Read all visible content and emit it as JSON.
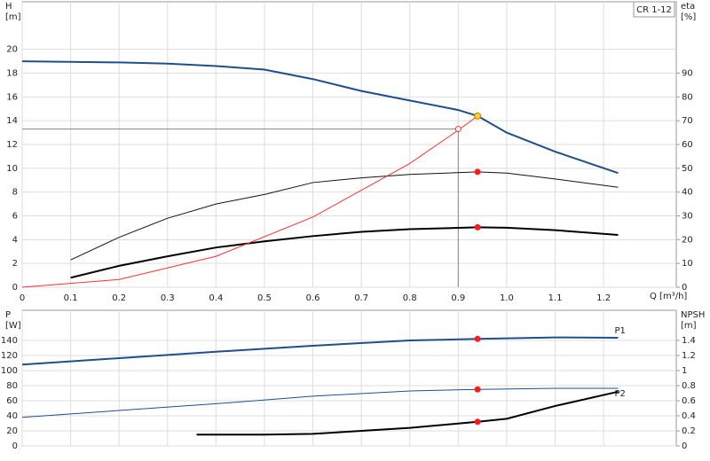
{
  "chart_data": [
    {
      "type": "line",
      "title": "CR 1-12",
      "ylabel": [
        "H",
        "[m]"
      ],
      "y2label": [
        "eta",
        "[%]"
      ],
      "xlabel": "Q [m³/h]",
      "xlim": [
        0,
        1.35
      ],
      "ylim": [
        0,
        24
      ],
      "y2lim": [
        0,
        120
      ],
      "grid": true,
      "xticks": [
        0,
        0.1,
        0.2,
        0.3,
        0.4,
        0.5,
        0.6,
        0.7,
        0.8,
        0.9,
        {
          "value": 1,
          "label": "1.0"
        },
        1.1,
        1.2
      ],
      "yticks": [
        0,
        2,
        4,
        6,
        8,
        10,
        12,
        14,
        16,
        18,
        20
      ],
      "y2ticks": [
        0,
        10,
        20,
        30,
        40,
        50,
        60,
        70,
        80,
        90
      ],
      "series": [
        {
          "color": "#1f4e8c",
          "line_width": 2,
          "x": [
            0,
            0.2,
            0.3,
            0.4,
            0.5,
            0.6,
            0.7,
            0.8,
            0.9,
            0.94,
            1.0,
            1.1,
            1.23
          ],
          "values": [
            19.0,
            18.9,
            18.8,
            18.6,
            18.3,
            17.5,
            16.5,
            15.7,
            14.9,
            14.4,
            13.0,
            11.4,
            9.6
          ]
        },
        {
          "color": "#111111",
          "line_width": 1,
          "axis": "y2",
          "x": [
            0.1,
            0.2,
            0.3,
            0.4,
            0.5,
            0.6,
            0.7,
            0.8,
            0.94,
            1.0,
            1.1,
            1.23
          ],
          "values": [
            11.5,
            21,
            29,
            35,
            39,
            44,
            46,
            47.4,
            48.5,
            48,
            45.5,
            42
          ]
        },
        {
          "color": "#000000",
          "line_width": 2,
          "axis": "y2",
          "x": [
            0.1,
            0.2,
            0.3,
            0.4,
            0.5,
            0.6,
            0.7,
            0.8,
            0.94,
            1.0,
            1.1,
            1.23
          ],
          "values": [
            4,
            9,
            13,
            16.7,
            19.3,
            21.5,
            23.3,
            24.4,
            25.2,
            25,
            24,
            22
          ]
        },
        {
          "color": "#ff3030",
          "line_width": 1,
          "x": [
            0,
            0.2,
            0.4,
            0.6,
            0.8,
            0.9,
            0.94
          ],
          "values": [
            0,
            0.65,
            2.6,
            5.9,
            10.4,
            13.2,
            14.4
          ]
        }
      ],
      "reference": {
        "x": 0.9,
        "y": 13.3,
        "color": "#888888"
      },
      "points": [
        {
          "x": 0.9,
          "y": 13.3,
          "color": "#ff3030",
          "hollow": true
        },
        {
          "x": 0.94,
          "y": 14.4,
          "color": "#ffd21f"
        },
        {
          "x": 0.94,
          "y": 48.5,
          "axis": "y2",
          "color": "#ff1a1a"
        },
        {
          "x": 0.94,
          "y": 25.2,
          "axis": "y2",
          "color": "#ff1a1a"
        }
      ]
    },
    {
      "type": "line",
      "ylabel": [
        "P",
        "[W]"
      ],
      "y2label": [
        "NPSH",
        "[m]"
      ],
      "xlim": [
        0,
        1.35
      ],
      "ylim": [
        0,
        180
      ],
      "y2lim": [
        0,
        1.8
      ],
      "grid": true,
      "yticks": [
        0,
        20,
        40,
        60,
        80,
        100,
        120,
        140
      ],
      "y2ticks": [
        0,
        0.2,
        0.4,
        0.6,
        0.8,
        1,
        1.2,
        1.4
      ],
      "series": [
        {
          "name": "P1",
          "color": "#1f4e8c",
          "line_width": 2,
          "x": [
            0,
            0.4,
            0.6,
            0.8,
            0.94,
            1.1,
            1.23
          ],
          "values": [
            108,
            125,
            133,
            140,
            142,
            144,
            143.5
          ]
        },
        {
          "name": "P2",
          "color": "#1f4e8c",
          "line_width": 1,
          "x": [
            0,
            0.2,
            0.4,
            0.6,
            0.8,
            0.94,
            1.1,
            1.23
          ],
          "values": [
            38,
            47,
            56,
            66,
            73,
            75,
            76.5,
            76.5
          ]
        },
        {
          "color": "#000000",
          "line_width": 2,
          "axis": "y2",
          "x": [
            0.36,
            0.5,
            0.6,
            0.7,
            0.8,
            0.94,
            1.0,
            1.1,
            1.23
          ],
          "values": [
            0.15,
            0.15,
            0.16,
            0.2,
            0.24,
            0.32,
            0.36,
            0.53,
            0.72
          ]
        }
      ],
      "points": [
        {
          "x": 0.94,
          "y": 142,
          "color": "#ff1a1a"
        },
        {
          "x": 0.94,
          "y": 75,
          "color": "#ff1a1a"
        },
        {
          "x": 0.94,
          "y": 0.32,
          "axis": "y2",
          "color": "#ff1a1a"
        }
      ]
    }
  ]
}
